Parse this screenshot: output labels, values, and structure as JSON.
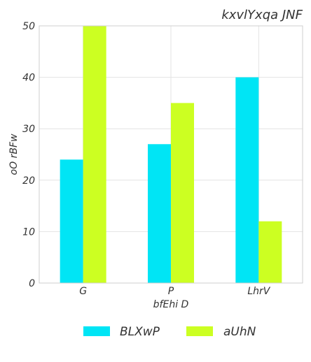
{
  "chart_data": {
    "type": "bar",
    "title": "kxvlYxqa JNF",
    "xlabel": "bfEhi D",
    "ylabel": "oO rBFw",
    "categories": [
      "G",
      "P",
      "LhrV"
    ],
    "series": [
      {
        "name": "BLXwP",
        "color": "#00e5f5",
        "values": [
          24,
          27,
          40
        ]
      },
      {
        "name": "aUhN",
        "color": "#ccff22",
        "values": [
          50,
          35,
          12
        ]
      }
    ],
    "ylim": [
      0,
      50
    ],
    "yticks": [
      0,
      10,
      20,
      30,
      40,
      50
    ],
    "grid": true,
    "legend_position": "bottom"
  }
}
